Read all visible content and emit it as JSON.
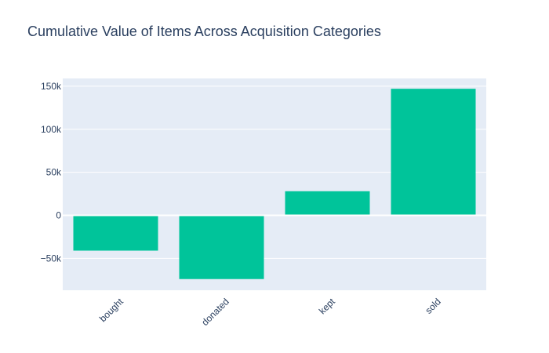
{
  "chart_data": {
    "type": "bar",
    "title": "Cumulative Value of Items Across Acquisition Categories",
    "xlabel": "",
    "ylabel": "",
    "categories": [
      "bought",
      "donated",
      "kept",
      "sold"
    ],
    "values": [
      -41000,
      -74000,
      28000,
      147000
    ],
    "ylim": [
      -87000,
      159000
    ],
    "y_ticks": [
      -50000,
      0,
      50000,
      100000,
      150000
    ],
    "y_tick_labels": [
      "−50k",
      "0",
      "50k",
      "100k",
      "150k"
    ],
    "grid": true,
    "legend": "none",
    "colors": {
      "bar": "#00c49a",
      "plot_background": "#e5ecf6",
      "grid": "#ffffff",
      "text": "#2a3f5f"
    }
  }
}
